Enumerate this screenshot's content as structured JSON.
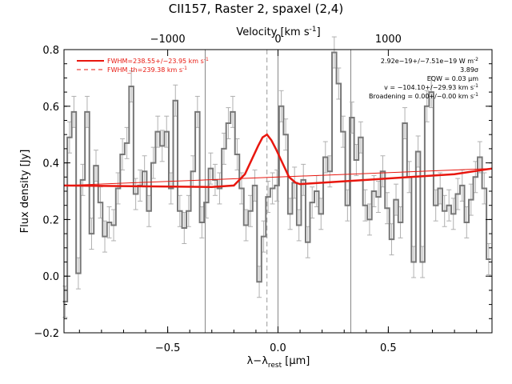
{
  "chart_data": {
    "type": "line",
    "title": "CII157, Raster 2, spaxel (2,4)",
    "xlabel": "λ−λ",
    "xlabel_sub": "rest",
    "xlabel_unit": " [μm]",
    "ylabel": "Flux density [Jy]",
    "top_axis_label": "Velocity [km s",
    "top_axis_sup": "-1",
    "top_axis_close": "]",
    "xlim": [
      -0.97,
      0.97
    ],
    "ylim": [
      -0.2,
      0.8
    ],
    "x_ticks": [
      -0.5,
      0.0,
      0.5
    ],
    "x_tick_labels": [
      "−0.5",
      "0.0",
      "0.5"
    ],
    "y_ticks": [
      -0.2,
      0.0,
      0.2,
      0.4,
      0.6,
      0.8
    ],
    "y_tick_labels": [
      "−0.2",
      "0.0",
      "0.2",
      "0.4",
      "0.6",
      "0.8"
    ],
    "top_ticks_x": [
      -0.5,
      0.0,
      0.5
    ],
    "top_tick_labels": [
      "−1000",
      "0",
      "1000"
    ],
    "vlines_x": [
      -0.33,
      0.0,
      0.33
    ],
    "dashed_vline_x": -0.05,
    "legend": [
      {
        "text": "FWHM=238.55+/−23.95 km s",
        "sup": "-1",
        "style": "solid"
      },
      {
        "text": "FWHM_th=239.38 km s",
        "sup": "-1",
        "style": "dashed"
      }
    ],
    "annotations": [
      {
        "text": "2.92e−19+/−7.51e−19 W m",
        "sup": "-2"
      },
      {
        "text": "3.89σ"
      },
      {
        "text": "EQW = 0.03 μm"
      },
      {
        "text": "v = −104.10+/−29.93 km s",
        "sup": "-1"
      },
      {
        "text": "Broadening = 0.00+/−0.00 km s",
        "sup": "-1"
      }
    ],
    "series": [
      {
        "kind": "step",
        "color": "#777777",
        "x": [
          -0.965,
          -0.945,
          -0.925,
          -0.905,
          -0.885,
          -0.865,
          -0.845,
          -0.825,
          -0.805,
          -0.785,
          -0.765,
          -0.745,
          -0.725,
          -0.705,
          -0.685,
          -0.665,
          -0.645,
          -0.625,
          -0.605,
          -0.585,
          -0.565,
          -0.545,
          -0.525,
          -0.505,
          -0.485,
          -0.465,
          -0.445,
          -0.425,
          -0.405,
          -0.385,
          -0.365,
          -0.345,
          -0.325,
          -0.305,
          -0.285,
          -0.265,
          -0.245,
          -0.225,
          -0.205,
          -0.185,
          -0.165,
          -0.145,
          -0.125,
          -0.105,
          -0.085,
          -0.065,
          -0.045,
          -0.025,
          -0.005,
          0.015,
          0.035,
          0.055,
          0.075,
          0.095,
          0.115,
          0.135,
          0.155,
          0.175,
          0.195,
          0.215,
          0.235,
          0.255,
          0.275,
          0.295,
          0.315,
          0.335,
          0.355,
          0.375,
          0.395,
          0.415,
          0.435,
          0.455,
          0.475,
          0.495,
          0.515,
          0.535,
          0.555,
          0.575,
          0.595,
          0.615,
          0.635,
          0.655,
          0.675,
          0.695,
          0.715,
          0.735,
          0.755,
          0.775,
          0.795,
          0.815,
          0.835,
          0.855,
          0.875,
          0.895,
          0.915,
          0.935,
          0.955
        ],
        "y": [
          -0.09,
          0.49,
          0.58,
          0.01,
          0.34,
          0.58,
          0.15,
          0.39,
          0.26,
          0.14,
          0.19,
          0.18,
          0.31,
          0.43,
          0.47,
          0.67,
          0.29,
          0.32,
          0.37,
          0.23,
          0.4,
          0.51,
          0.46,
          0.51,
          0.31,
          0.62,
          0.23,
          0.17,
          0.23,
          0.37,
          0.58,
          0.19,
          0.26,
          0.38,
          0.34,
          0.31,
          0.45,
          0.54,
          0.58,
          0.43,
          0.31,
          0.18,
          0.23,
          0.32,
          -0.02,
          0.14,
          0.28,
          0.31,
          0.32,
          0.6,
          0.5,
          0.22,
          0.33,
          0.18,
          0.34,
          0.12,
          0.26,
          0.3,
          0.22,
          0.42,
          0.37,
          0.79,
          0.68,
          0.51,
          0.25,
          0.56,
          0.41,
          0.49,
          0.25,
          0.2,
          0.3,
          0.28,
          0.37,
          0.24,
          0.13,
          0.27,
          0.19,
          0.54,
          0.35,
          0.05,
          0.44,
          0.05,
          0.6,
          0.65,
          0.25,
          0.31,
          0.23,
          0.25,
          0.22,
          0.29,
          0.32,
          0.19,
          0.27,
          0.35,
          0.42,
          0.31,
          0.06
        ],
        "err": 0.055
      },
      {
        "kind": "model",
        "color": "#e8170f",
        "x": [
          -0.97,
          -0.3,
          -0.2,
          -0.15,
          -0.12,
          -0.09,
          -0.07,
          -0.05,
          -0.03,
          -0.01,
          0.02,
          0.05,
          0.08,
          0.1,
          0.2,
          0.4,
          0.6,
          0.8,
          0.97
        ],
        "y": [
          0.32,
          0.315,
          0.32,
          0.36,
          0.41,
          0.46,
          0.49,
          0.5,
          0.48,
          0.45,
          0.4,
          0.35,
          0.33,
          0.325,
          0.33,
          0.34,
          0.35,
          0.36,
          0.38
        ]
      },
      {
        "kind": "continuum",
        "color": "#e8170f",
        "x": [
          -0.97,
          0.97
        ],
        "y": [
          0.32,
          0.38
        ]
      }
    ]
  }
}
